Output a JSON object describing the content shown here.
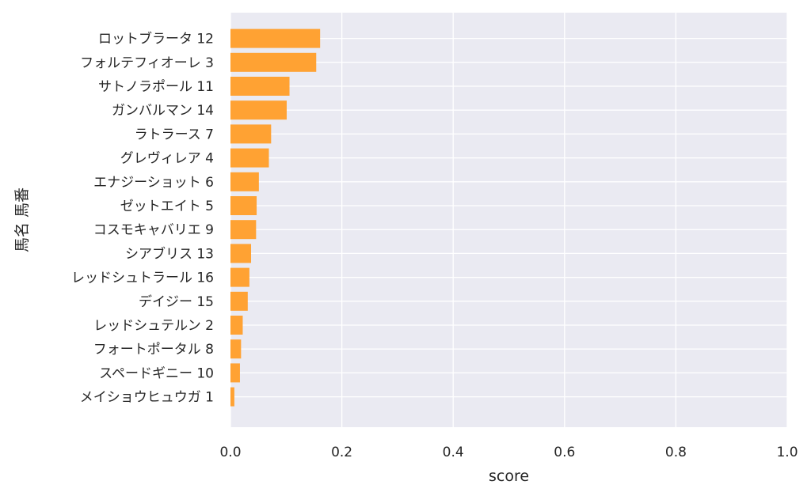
{
  "chart_data": {
    "type": "bar",
    "orientation": "horizontal",
    "xlabel": "score",
    "ylabel": "馬名 馬番",
    "xlim": [
      0.0,
      1.0
    ],
    "xticks": [
      "0.0",
      "0.2",
      "0.4",
      "0.6",
      "0.8",
      "1.0"
    ],
    "grid": true,
    "bar_color": "#ffa233",
    "plot_background": "#eaeaf2",
    "categories": [
      "ロットブラータ 12",
      "フォルテフィオーレ 3",
      "サトノラポール 11",
      "ガンバルマン 14",
      "ラトラース 7",
      "グレヴィレア 4",
      "エナジーショット 6",
      "ゼットエイト 5",
      "コスモキャバリエ 9",
      "シアブリス 13",
      "レッドシュトラール 16",
      "デイジー 15",
      "レッドシュテルン 2",
      "フォートポータル 8",
      "スペードギニー 10",
      "メイショウヒュウガ 1"
    ],
    "values": [
      0.161,
      0.154,
      0.106,
      0.101,
      0.073,
      0.069,
      0.051,
      0.047,
      0.046,
      0.037,
      0.034,
      0.031,
      0.022,
      0.019,
      0.017,
      0.007
    ]
  }
}
